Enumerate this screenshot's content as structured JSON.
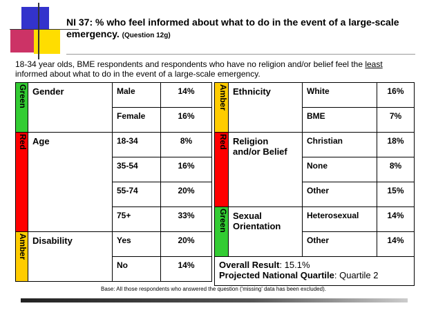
{
  "header": {
    "title": "NI 37: % who feel informed about what to do in the event of a large-scale emergency.",
    "question": "(Question 12g)"
  },
  "intro": {
    "before": "18-34 year olds, BME respondents and respondents who have no religion and/or belief feel the ",
    "emphasis": "least",
    "after": " informed about what to do in the event of a large-scale emergency."
  },
  "left_table": {
    "groups": [
      {
        "status": "Green",
        "label": "Gender",
        "rows": [
          [
            "Male",
            "14%"
          ],
          [
            "Female",
            "16%"
          ]
        ]
      },
      {
        "status": "Red",
        "label": "Age",
        "rows": [
          [
            "18-34",
            "8%"
          ],
          [
            "35-54",
            "16%"
          ],
          [
            "55-74",
            "20%"
          ],
          [
            "75+",
            "33%"
          ]
        ]
      },
      {
        "status": "Amber",
        "label": "Disability",
        "rows": [
          [
            "Yes",
            "20%"
          ],
          [
            "No",
            "14%"
          ]
        ]
      }
    ]
  },
  "right_table": {
    "groups": [
      {
        "status": "Amber",
        "label": "Ethnicity",
        "rows": [
          [
            "White",
            "16%"
          ],
          [
            "BME",
            "7%"
          ]
        ]
      },
      {
        "status": "Red",
        "label": "Religion and/or Belief",
        "rows": [
          [
            "Christian",
            "18%"
          ],
          [
            "None",
            "8%"
          ],
          [
            "Other",
            "15%"
          ]
        ]
      },
      {
        "status": "Green",
        "label": "Sexual Orientation",
        "rows": [
          [
            "Heterosexual",
            "14%"
          ],
          [
            "Other",
            "14%"
          ]
        ]
      }
    ],
    "summary": {
      "overall_label": "Overall Result",
      "overall_value": ": 15.1%",
      "quartile_label": "Projected National Quartile",
      "quartile_value": ": Quartile 2"
    }
  },
  "footer": {
    "base": "Base: All those respondents who answered the question ('missing' data has been excluded)."
  }
}
